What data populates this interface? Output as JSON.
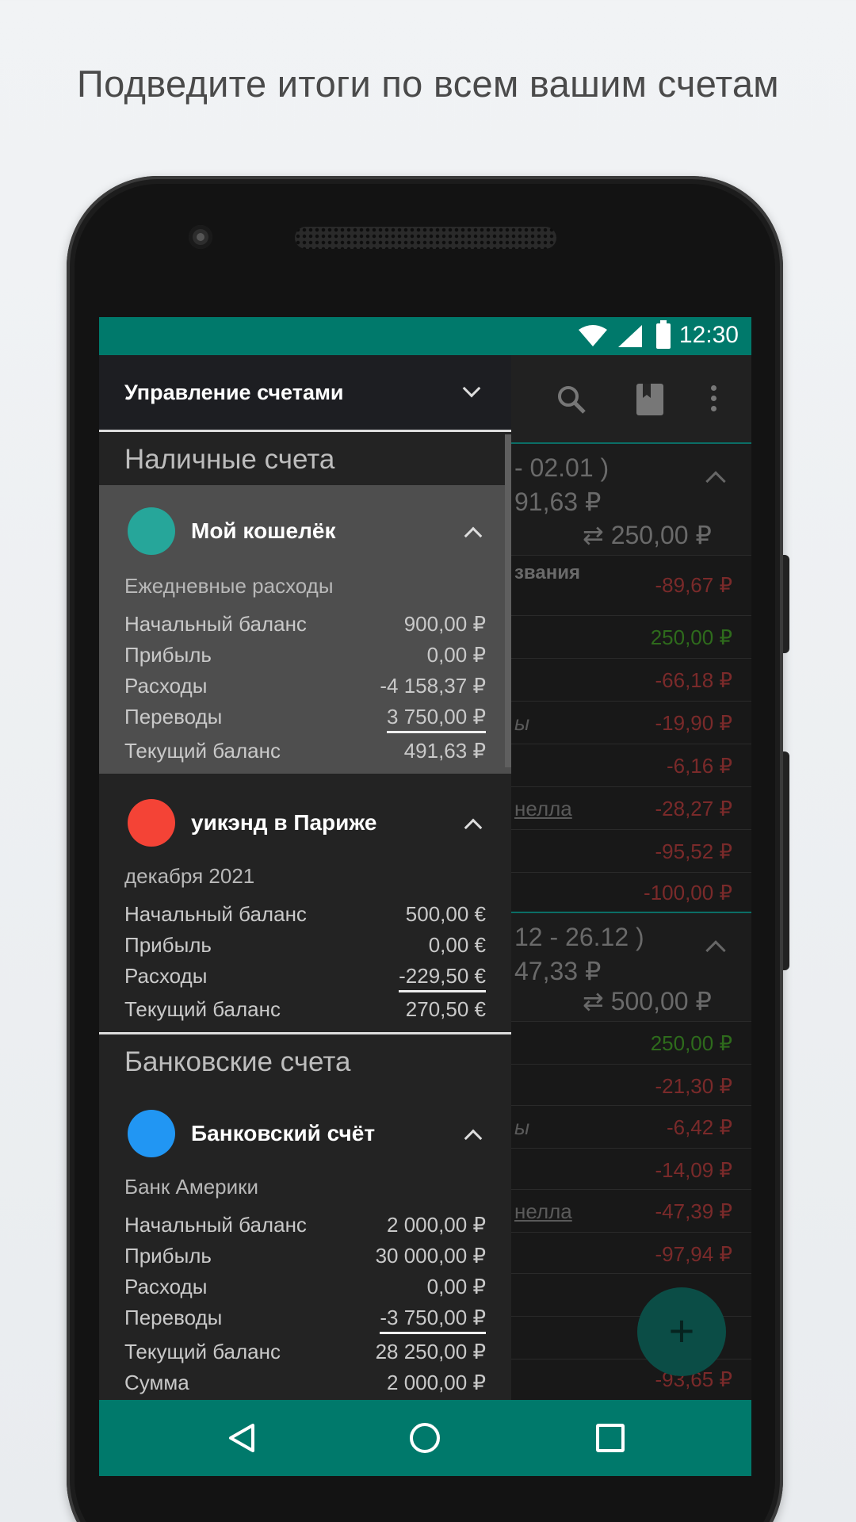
{
  "headline": "Подведите итоги по всем вашим счетам",
  "status": {
    "time": "12:30"
  },
  "drawer": {
    "title": "Управление счетами",
    "sections": {
      "cash": "Наличные счета",
      "bank": "Банковские счета"
    },
    "accounts": [
      {
        "name": "Мой кошелёк",
        "color": "#26a69a",
        "description": "Ежедневные расходы",
        "lines": [
          {
            "label": "Начальный баланс",
            "value": "900,00 ₽"
          },
          {
            "label": "Прибыль",
            "value": "0,00 ₽"
          },
          {
            "label": "Расходы",
            "value": "-4 158,37 ₽"
          },
          {
            "label": "Переводы",
            "value": "3 750,00 ₽"
          },
          {
            "label": "Текущий баланс",
            "value": "491,63 ₽"
          }
        ]
      },
      {
        "name": "уикэнд в Париже",
        "color": "#f44336",
        "description": "декабря 2021",
        "lines": [
          {
            "label": "Начальный баланс",
            "value": "500,00 €"
          },
          {
            "label": "Прибыль",
            "value": "0,00 €"
          },
          {
            "label": "Расходы",
            "value": "-229,50 €"
          },
          {
            "label": "Текущий баланс",
            "value": "270,50 €"
          }
        ]
      },
      {
        "name": "Банковский счёт",
        "color": "#2196f3",
        "description": "Банк Америки",
        "lines": [
          {
            "label": "Начальный баланс",
            "value": "2 000,00 ₽"
          },
          {
            "label": "Прибыль",
            "value": "30 000,00 ₽"
          },
          {
            "label": "Расходы",
            "value": "0,00 ₽"
          },
          {
            "label": "Переводы",
            "value": "-3 750,00 ₽"
          },
          {
            "label": "Текущий баланс",
            "value": "28 250,00 ₽"
          },
          {
            "label": "Сумма",
            "value": "2 000,00 ₽"
          }
        ]
      }
    ]
  },
  "background": {
    "group1": {
      "period": "- 02.01 )",
      "balance": "91,63 ₽",
      "transfer": "⇄ 250,00 ₽",
      "label": "звания"
    },
    "group1_rows": [
      {
        "text": "",
        "amount": "-89,67 ₽"
      },
      {
        "text": "",
        "amount": "250,00 ₽"
      },
      {
        "text": "",
        "amount": "-66,18 ₽"
      },
      {
        "text": "ы",
        "amount": "-19,90 ₽"
      },
      {
        "text": "",
        "amount": "-6,16 ₽"
      },
      {
        "text": "нелла",
        "amount": "-28,27 ₽"
      },
      {
        "text": "",
        "amount": "-95,52 ₽"
      },
      {
        "text": "",
        "amount": "-100,00 ₽"
      }
    ],
    "group2": {
      "period": "12 - 26.12 )",
      "balance": "47,33 ₽",
      "transfer": "⇄ 500,00 ₽"
    },
    "group2_rows": [
      {
        "text": "",
        "amount": "250,00 ₽"
      },
      {
        "text": "",
        "amount": "-21,30 ₽"
      },
      {
        "text": "ы",
        "amount": "-6,42 ₽"
      },
      {
        "text": "",
        "amount": "-14,09 ₽"
      },
      {
        "text": "нелла",
        "amount": "-47,39 ₽"
      },
      {
        "text": "",
        "amount": "-97,94 ₽"
      },
      {
        "text": "",
        "amount": "-93,65 ₽"
      }
    ]
  },
  "fab_label": "+"
}
